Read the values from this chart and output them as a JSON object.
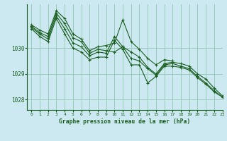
{
  "title": "Graphe pression niveau de la mer (hPa)",
  "background_color": "#cce8f0",
  "grid_color": "#99ccbb",
  "line_color": "#1a5e20",
  "marker_color": "#1a5e20",
  "xlim": [
    -0.5,
    23
  ],
  "ylim": [
    1027.6,
    1031.7
  ],
  "yticks": [
    1028,
    1029,
    1030
  ],
  "xticks": [
    0,
    1,
    2,
    3,
    4,
    5,
    6,
    7,
    8,
    9,
    10,
    11,
    12,
    13,
    14,
    15,
    16,
    17,
    18,
    19,
    20,
    21,
    22,
    23
  ],
  "series": [
    [
      1030.9,
      1030.7,
      1030.55,
      1031.45,
      1031.15,
      1030.55,
      1030.35,
      1029.9,
      1030.05,
      1030.1,
      1030.2,
      1031.1,
      1030.25,
      1029.95,
      1029.6,
      1029.35,
      1029.55,
      1029.5,
      null,
      null,
      null,
      null,
      null,
      null
    ],
    [
      1030.85,
      1030.6,
      1030.45,
      1031.35,
      1030.95,
      1030.4,
      1030.25,
      1029.8,
      1029.95,
      1029.9,
      1029.85,
      1030.05,
      1029.85,
      1029.65,
      1029.25,
      1029.0,
      1029.4,
      1029.45,
      1029.4,
      1029.3,
      1029.0,
      1028.8,
      1028.45,
      1028.15
    ],
    [
      1030.8,
      1030.55,
      1030.35,
      1031.25,
      1030.75,
      1030.2,
      1030.05,
      1029.7,
      1029.85,
      1029.8,
      1030.45,
      1030.05,
      1029.6,
      1029.5,
      1029.2,
      1028.95,
      1029.35,
      1029.4,
      1029.3,
      1029.2,
      1028.9,
      1028.65,
      1028.35,
      1028.1
    ],
    [
      1030.75,
      1030.45,
      1030.25,
      1031.15,
      1030.55,
      1030.0,
      1029.85,
      1029.55,
      1029.65,
      1029.65,
      1030.3,
      1029.95,
      1029.35,
      1029.35,
      1028.65,
      1028.9,
      1029.3,
      1029.3,
      1029.25,
      1029.15,
      1028.85,
      1028.6,
      1028.3,
      1028.1
    ]
  ]
}
